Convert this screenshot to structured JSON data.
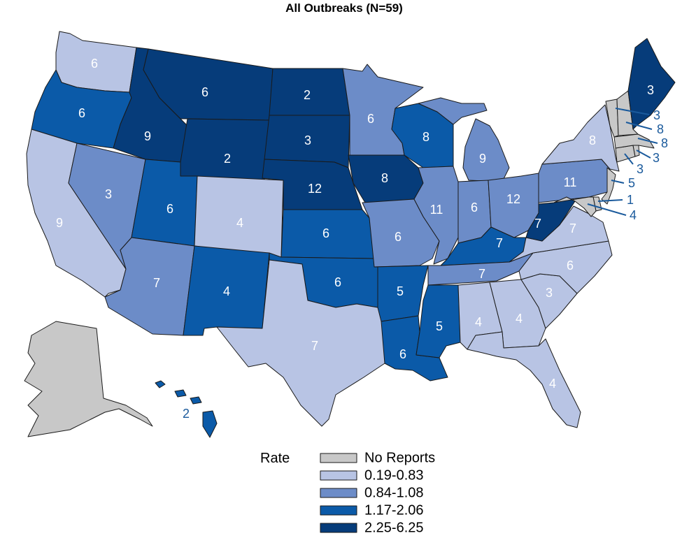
{
  "title": "All Outbreaks (N=59)",
  "legend": {
    "title": "Rate",
    "items": [
      {
        "label": "No Reports",
        "color": "#c8c8c8"
      },
      {
        "label": "0.19-0.83",
        "color": "#b8c4e4"
      },
      {
        "label": "0.84-1.08",
        "color": "#6c8cc8"
      },
      {
        "label": "1.17-2.06",
        "color": "#0b5aa8"
      },
      {
        "label": "2.25-6.25",
        "color": "#063c7a"
      }
    ]
  },
  "states": {
    "WA": {
      "value": "6",
      "rate_class": 1
    },
    "OR": {
      "value": "6",
      "rate_class": 3
    },
    "CA": {
      "value": "9",
      "rate_class": 1
    },
    "NV": {
      "value": "3",
      "rate_class": 2
    },
    "ID": {
      "value": "9",
      "rate_class": 4
    },
    "MT": {
      "value": "6",
      "rate_class": 4
    },
    "WY": {
      "value": "2",
      "rate_class": 4
    },
    "UT": {
      "value": "6",
      "rate_class": 3
    },
    "AZ": {
      "value": "7",
      "rate_class": 2
    },
    "CO": {
      "value": "4",
      "rate_class": 1
    },
    "NM": {
      "value": "4",
      "rate_class": 3
    },
    "ND": {
      "value": "2",
      "rate_class": 4
    },
    "SD": {
      "value": "3",
      "rate_class": 4
    },
    "NE": {
      "value": "12",
      "rate_class": 4
    },
    "KS": {
      "value": "6",
      "rate_class": 3
    },
    "OK": {
      "value": "6",
      "rate_class": 3
    },
    "TX": {
      "value": "7",
      "rate_class": 1
    },
    "MN": {
      "value": "6",
      "rate_class": 2
    },
    "IA": {
      "value": "8",
      "rate_class": 4
    },
    "MO": {
      "value": "6",
      "rate_class": 2
    },
    "AR": {
      "value": "5",
      "rate_class": 3
    },
    "LA": {
      "value": "6",
      "rate_class": 3
    },
    "WI": {
      "value": "8",
      "rate_class": 3
    },
    "IL": {
      "value": "11",
      "rate_class": 2
    },
    "MS": {
      "value": "5",
      "rate_class": 3
    },
    "MI": {
      "value": "9",
      "rate_class": 2
    },
    "IN": {
      "value": "6",
      "rate_class": 2
    },
    "KY": {
      "value": "7",
      "rate_class": 3
    },
    "TN": {
      "value": "7",
      "rate_class": 2
    },
    "AL": {
      "value": "4",
      "rate_class": 1
    },
    "GA": {
      "value": "4",
      "rate_class": 1
    },
    "FL": {
      "value": "4",
      "rate_class": 1
    },
    "SC": {
      "value": "3",
      "rate_class": 1
    },
    "NC": {
      "value": "6",
      "rate_class": 1
    },
    "VA": {
      "value": "7",
      "rate_class": 1
    },
    "WV": {
      "value": "7",
      "rate_class": 4
    },
    "OH": {
      "value": "12",
      "rate_class": 2
    },
    "PA": {
      "value": "11",
      "rate_class": 2
    },
    "NY": {
      "value": "8",
      "rate_class": 1
    },
    "ME": {
      "value": "3",
      "rate_class": 4
    },
    "AK": {
      "value": "",
      "rate_class": 0
    },
    "HI": {
      "value": "2",
      "rate_class": 3
    }
  },
  "external_labels": {
    "VT": "3",
    "NH": "8",
    "MA": "8",
    "RI": "3",
    "CT": "3",
    "NJ": "5",
    "DE": "1",
    "MD": "4"
  }
}
